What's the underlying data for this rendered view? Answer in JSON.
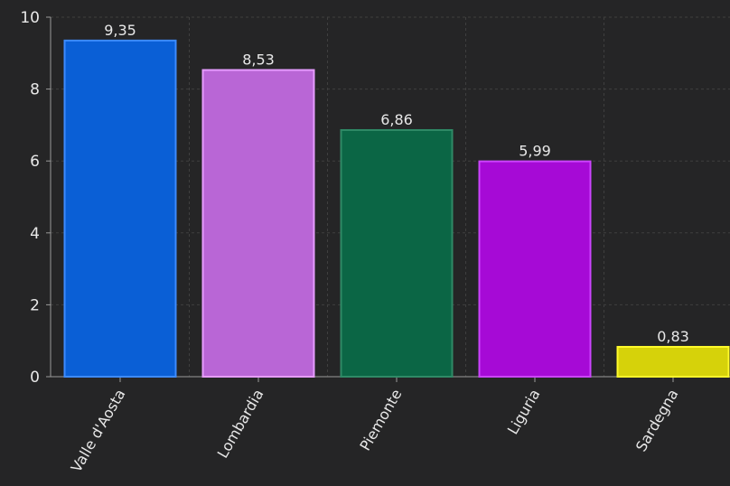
{
  "chart_data": {
    "type": "bar",
    "categories": [
      "Valle d'Aosta",
      "Lombardia",
      "Piemonte",
      "Liguria",
      "Sardegna"
    ],
    "values": [
      9.35,
      8.53,
      6.86,
      5.99,
      0.83
    ],
    "value_labels": [
      "9,35",
      "8,53",
      "6,86",
      "5,99",
      "0,83"
    ],
    "bar_colors": [
      "#0a5fd6",
      "#b966d6",
      "#0b6645",
      "#a60ad6",
      "#d6d20a"
    ],
    "bar_stroke_colors": [
      "#3d8bff",
      "#e79cff",
      "#2f8a66",
      "#cc44ff",
      "#fffb2b"
    ],
    "ylim": [
      0,
      10
    ],
    "yticks": [
      0,
      2,
      4,
      6,
      8,
      10
    ],
    "ytick_labels": [
      "0",
      "2",
      "4",
      "6",
      "8",
      "10"
    ],
    "grid": true,
    "title": "",
    "xlabel": "",
    "ylabel": ""
  },
  "colors": {
    "background": "#252526",
    "text": "#e8e8e8",
    "axis": "#9a9a9a",
    "grid": "#3f3f3f"
  }
}
